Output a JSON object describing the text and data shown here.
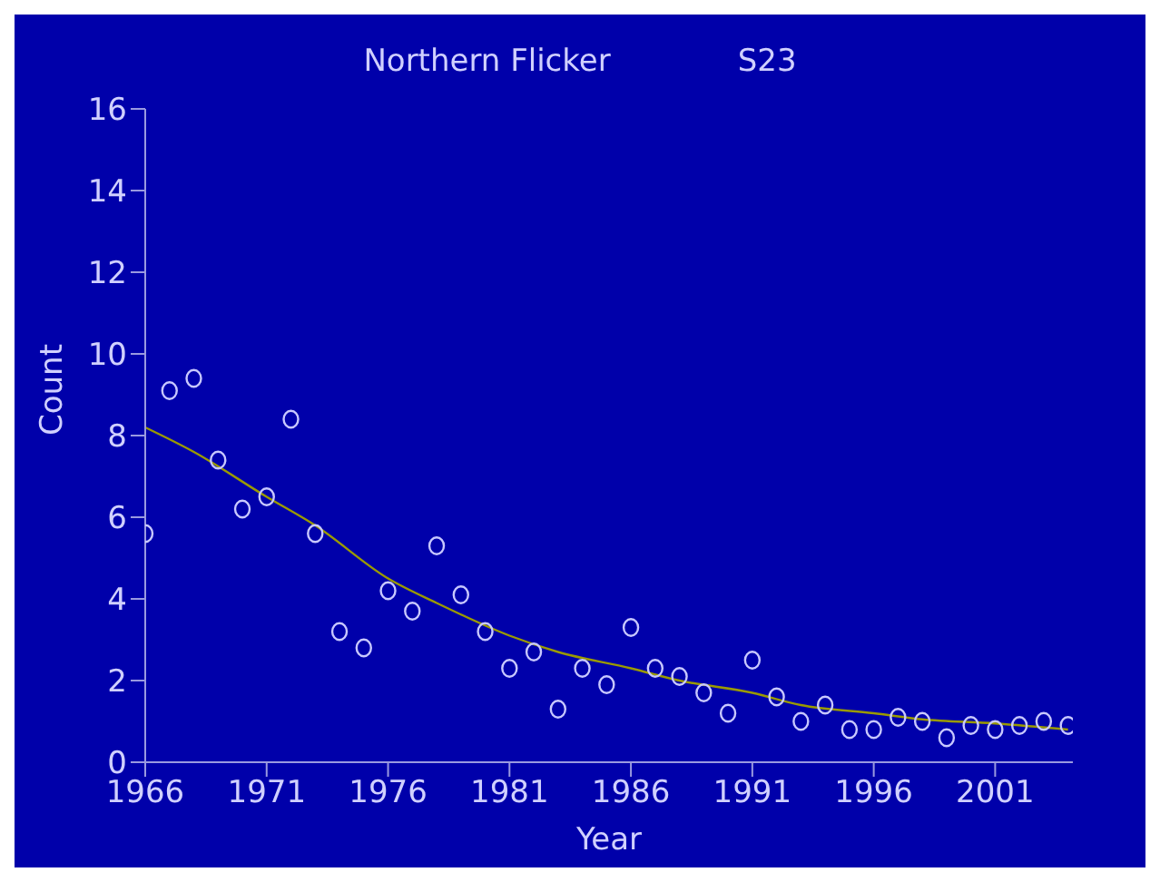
{
  "chart_data": {
    "type": "scatter",
    "title": "Northern Flicker",
    "subtitle": "S23",
    "xlabel": "Year",
    "ylabel": "Count",
    "xlim": [
      1966,
      2004.2
    ],
    "xticks": [
      1966,
      1971,
      1976,
      1981,
      1986,
      1991,
      1996,
      2001
    ],
    "ylim": [
      0,
      16
    ],
    "yticks": [
      0,
      2,
      4,
      6,
      8,
      10,
      12,
      14,
      16
    ],
    "grid": false,
    "legend": false,
    "series": [
      {
        "marker": "circle",
        "color": "#c8c8ff",
        "x": [
          1966,
          1967,
          1968,
          1969,
          1970,
          1971,
          1972,
          1973,
          1974,
          1975,
          1976,
          1977,
          1978,
          1979,
          1980,
          1981,
          1982,
          1983,
          1984,
          1985,
          1986,
          1987,
          1988,
          1989,
          1990,
          1991,
          1992,
          1993,
          1994,
          1995,
          1996,
          1997,
          1998,
          1999,
          2000,
          2001,
          2002,
          2003,
          2004
        ],
        "values": [
          5.6,
          9.1,
          9.4,
          7.4,
          6.2,
          6.5,
          8.4,
          5.6,
          3.2,
          2.8,
          4.2,
          3.7,
          5.3,
          4.1,
          3.2,
          2.3,
          2.7,
          1.3,
          2.3,
          1.9,
          3.3,
          2.3,
          2.1,
          1.7,
          1.2,
          2.5,
          1.6,
          1.0,
          1.4,
          0.8,
          0.8,
          1.1,
          1.0,
          0.6,
          0.9,
          0.8,
          0.9,
          1.0,
          0.9
        ]
      },
      {
        "type": "line",
        "marker": "none",
        "color": "#9a9a00",
        "x": [
          1966,
          1968,
          1971,
          1973,
          1976,
          1978,
          1981,
          1983,
          1986,
          1988,
          1991,
          1993,
          1996,
          1998,
          2001,
          2004
        ],
        "values": [
          8.2,
          7.6,
          6.5,
          5.8,
          4.5,
          3.9,
          3.1,
          2.7,
          2.3,
          2.0,
          1.7,
          1.4,
          1.2,
          1.05,
          0.95,
          0.8
        ]
      }
    ]
  }
}
